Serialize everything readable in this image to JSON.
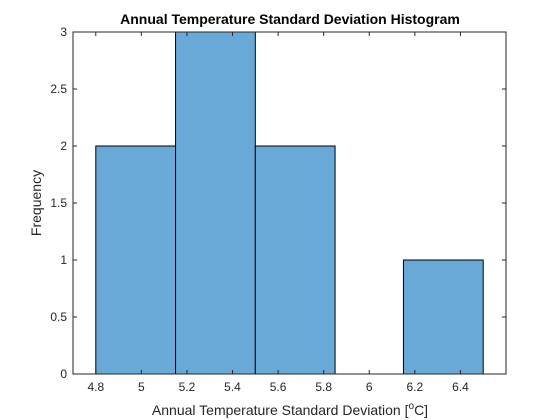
{
  "chart_data": {
    "type": "bar",
    "title": "Annual Temperature Standard Deviation Histogram",
    "xlabel": "Annual Temperature Standard Deviation",
    "xlabel_unit_prefix": "[",
    "xlabel_unit_super": "o",
    "xlabel_unit_suffix": "C]",
    "ylabel": "Frequency",
    "bar_color": "#68a9d8",
    "bins": [
      {
        "x0": 4.8,
        "x1": 5.15,
        "count": 2
      },
      {
        "x0": 5.15,
        "x1": 5.5,
        "count": 3
      },
      {
        "x0": 5.5,
        "x1": 5.85,
        "count": 2
      },
      {
        "x0": 5.85,
        "x1": 6.15,
        "count": 0
      },
      {
        "x0": 6.15,
        "x1": 6.5,
        "count": 1
      }
    ],
    "xlim": [
      4.7,
      6.6
    ],
    "ylim": [
      0,
      3
    ],
    "xticks": [
      4.8,
      5,
      5.2,
      5.4,
      5.6,
      5.8,
      6,
      6.2,
      6.4
    ],
    "xtick_labels": [
      "4.8",
      "5",
      "5.2",
      "5.4",
      "5.6",
      "5.8",
      "6",
      "6.2",
      "6.4"
    ],
    "yticks": [
      0,
      0.5,
      1,
      1.5,
      2,
      2.5,
      3
    ],
    "ytick_labels": [
      "0",
      "0.5",
      "1",
      "1.5",
      "2",
      "2.5",
      "3"
    ],
    "grid": false
  }
}
